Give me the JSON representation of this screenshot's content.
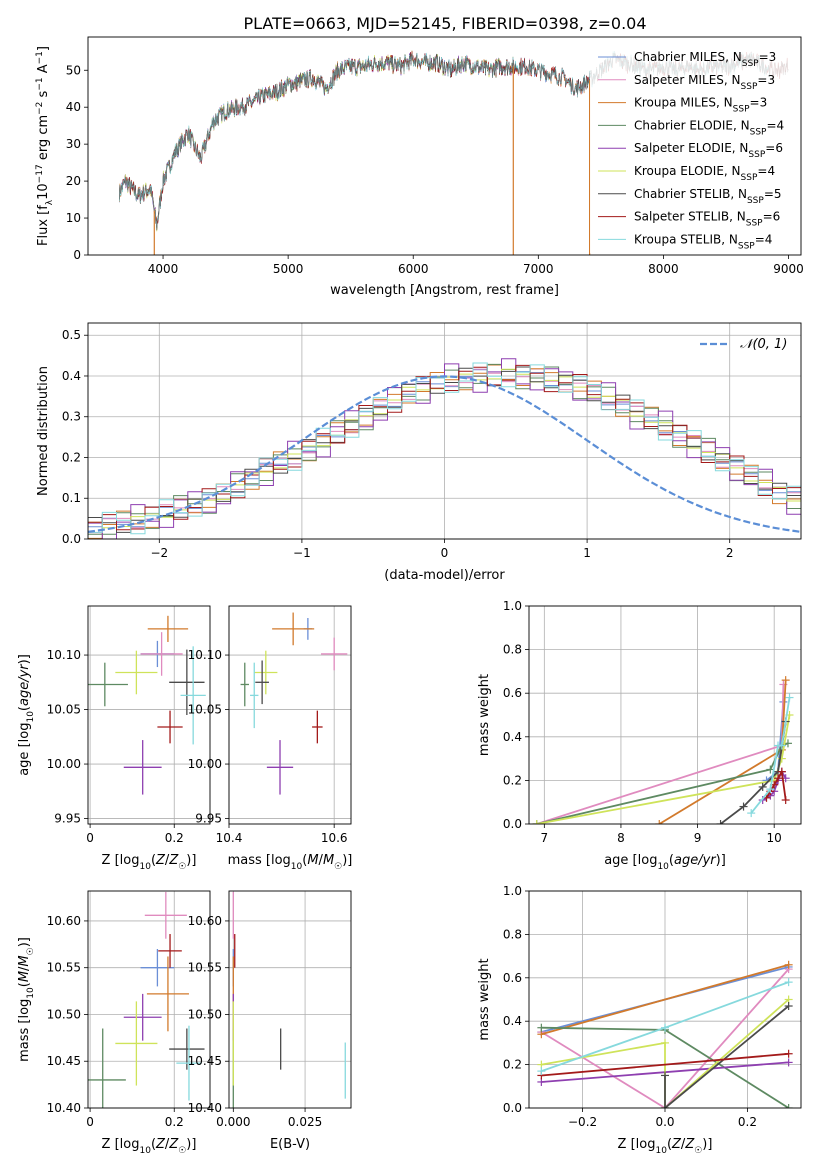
{
  "figure_title": "PLATE=0663, MJD=52145, FIBERID=0398, z=0.04",
  "colors": {
    "Chabrier MILES": "#6b8fd6",
    "Salpeter MILES": "#e08bbf",
    "Kroupa MILES": "#d27a2c",
    "Chabrier ELODIE": "#5e8a62",
    "Salpeter ELODIE": "#8e3fb0",
    "Kroupa ELODIE": "#cfe35a",
    "Chabrier STELIB": "#4a4a4a",
    "Salpeter STELIB": "#a31a1a",
    "Kroupa STELIB": "#86d9dd",
    "gaussian": "#5b8ed6"
  },
  "chart_data": [
    {
      "id": "spectrum",
      "type": "line",
      "title": "PLATE=0663, MJD=52145, FIBERID=0398, z=0.04",
      "xlabel": "wavelength [Angstrom, rest frame]",
      "ylabel": "Flux [f_λ 10^-17 erg cm^-2 s^-1 A^-1]",
      "xlim": [
        3400,
        9100
      ],
      "ylim": [
        0,
        59
      ],
      "xticks": [
        4000,
        5000,
        6000,
        7000,
        8000,
        9000
      ],
      "yticks": [
        0,
        10,
        20,
        30,
        40,
        50
      ],
      "legend_position": "top-right",
      "legend": [
        {
          "name": "Chabrier MILES",
          "nssp": "3"
        },
        {
          "name": "Salpeter MILES",
          "nssp": "3"
        },
        {
          "name": "Kroupa MILES",
          "nssp": "3"
        },
        {
          "name": "Chabrier ELODIE",
          "nssp": "4"
        },
        {
          "name": "Salpeter ELODIE",
          "nssp": "6"
        },
        {
          "name": "Kroupa ELODIE",
          "nssp": "4"
        },
        {
          "name": "Chabrier STELIB",
          "nssp": "5"
        },
        {
          "name": "Salpeter STELIB",
          "nssp": "6"
        },
        {
          "name": "Kroupa STELIB",
          "nssp": "4"
        }
      ],
      "envelope_x": [
        3650,
        3700,
        3800,
        3900,
        3950,
        4000,
        4100,
        4200,
        4300,
        4400,
        4500,
        4600,
        4700,
        4800,
        4900,
        5000,
        5100,
        5200,
        5300,
        5400,
        5500,
        5600,
        5700,
        5800,
        5900,
        6000,
        6100,
        6200,
        6300,
        6400,
        6500,
        6600,
        6700,
        6800,
        6900,
        7000,
        7100,
        7200,
        7300,
        7400,
        7500,
        7600,
        7700,
        7800,
        7900,
        8000,
        8100,
        8200,
        8300,
        8400,
        8500,
        8600,
        8700,
        8800,
        8900,
        9000
      ],
      "envelope_y": [
        17,
        20,
        16,
        18,
        8,
        20,
        28,
        33,
        26,
        36,
        39,
        40,
        41,
        43,
        44,
        46,
        47,
        48,
        45,
        50,
        51,
        51,
        52,
        52,
        51,
        53,
        52,
        52,
        50,
        52,
        51,
        50,
        51,
        51,
        51,
        50,
        49,
        48,
        45,
        47,
        50,
        53,
        52,
        51,
        50,
        51,
        50,
        51,
        50,
        51,
        51,
        52,
        53,
        51,
        50,
        51
      ],
      "dips": [
        {
          "x": 3930,
          "color_key": "Kroupa MILES"
        },
        {
          "x": 6800,
          "color_key": "Kroupa MILES"
        },
        {
          "x": 7410,
          "color_key": "Kroupa MILES"
        }
      ]
    },
    {
      "id": "residual_histogram",
      "type": "bar",
      "xlabel": "(data-model)/error",
      "ylabel": "Normed distribution",
      "xlim": [
        -2.5,
        2.5
      ],
      "ylim": [
        0,
        0.53
      ],
      "xticks": [
        -2,
        -1,
        0,
        1,
        2
      ],
      "yticks": [
        0.0,
        0.1,
        0.2,
        0.3,
        0.4,
        0.5
      ],
      "legend_label": "𝒩(0, 1)",
      "legend_position": "top-right",
      "bin_width": 0.1,
      "bin_start": -2.5,
      "histogram": [
        0.03,
        0.035,
        0.04,
        0.045,
        0.055,
        0.065,
        0.075,
        0.085,
        0.095,
        0.11,
        0.13,
        0.15,
        0.17,
        0.185,
        0.2,
        0.22,
        0.24,
        0.26,
        0.28,
        0.3,
        0.32,
        0.34,
        0.36,
        0.37,
        0.38,
        0.39,
        0.395,
        0.4,
        0.4,
        0.405,
        0.4,
        0.398,
        0.39,
        0.385,
        0.375,
        0.36,
        0.345,
        0.33,
        0.31,
        0.295,
        0.275,
        0.255,
        0.235,
        0.215,
        0.195,
        0.175,
        0.155,
        0.135,
        0.115,
        0.1
      ],
      "series_offsets": [
        0.01,
        -0.012,
        0.018,
        -0.02,
        0.025,
        -0.008,
        0.015,
        -0.018,
        0.02
      ]
    },
    {
      "id": "age_vs_Z",
      "type": "scatter",
      "xlabel": "Z [log10(Z/Z☉)]",
      "ylabel": "age [log10(age/yr)]",
      "xlim": [
        -0.005,
        0.285
      ],
      "ylim": [
        9.945,
        10.145
      ],
      "xticks": [
        0.0,
        0.2
      ],
      "yticks": [
        9.95,
        10.0,
        10.05,
        10.1
      ],
      "ytick_labels": [
        "9.95",
        "10.00",
        "10.05",
        "10.10"
      ],
      "points": [
        {
          "series": "Chabrier MILES",
          "x": 0.16,
          "y": 10.101,
          "xerr": 0.04,
          "yerr": 0.012
        },
        {
          "series": "Salpeter MILES",
          "x": 0.17,
          "y": 10.101,
          "xerr": 0.05,
          "yerr": 0.02
        },
        {
          "series": "Kroupa MILES",
          "x": 0.185,
          "y": 10.124,
          "xerr": 0.048,
          "yerr": 0.012
        },
        {
          "series": "Chabrier ELODIE",
          "x": 0.035,
          "y": 10.073,
          "xerr": 0.055,
          "yerr": 0.02
        },
        {
          "series": "Salpeter ELODIE",
          "x": 0.125,
          "y": 9.997,
          "xerr": 0.045,
          "yerr": 0.025
        },
        {
          "series": "Kroupa ELODIE",
          "x": 0.11,
          "y": 10.084,
          "xerr": 0.05,
          "yerr": 0.02
        },
        {
          "series": "Chabrier STELIB",
          "x": 0.23,
          "y": 10.075,
          "xerr": 0.042,
          "yerr": 0.03
        },
        {
          "series": "Salpeter STELIB",
          "x": 0.19,
          "y": 10.034,
          "xerr": 0.03,
          "yerr": 0.015
        },
        {
          "series": "Kroupa STELIB",
          "x": 0.245,
          "y": 10.063,
          "xerr": 0.03,
          "yerr": 0.045
        }
      ]
    },
    {
      "id": "age_vs_mass",
      "type": "scatter",
      "xlabel": "mass [log10(M/M☉)]",
      "xlim": [
        10.4,
        10.632
      ],
      "ylim": [
        9.945,
        10.145
      ],
      "xticks": [
        10.4,
        10.6
      ],
      "xtick_labels": [
        "10.4",
        "10.6"
      ],
      "yticks": [
        9.95,
        10.0,
        10.05,
        10.1
      ],
      "ytick_labels": [
        "9.95",
        "10.00",
        "10.05",
        "10.10"
      ],
      "points": [
        {
          "series": "Chabrier MILES",
          "x": 10.55,
          "y": 10.124,
          "xerr": 0.008,
          "yerr": 0.01
        },
        {
          "series": "Salpeter MILES",
          "x": 10.6,
          "y": 10.101,
          "xerr": 0.025,
          "yerr": 0.015
        },
        {
          "series": "Kroupa MILES",
          "x": 10.522,
          "y": 10.124,
          "xerr": 0.04,
          "yerr": 0.015
        },
        {
          "series": "Chabrier ELODIE",
          "x": 10.43,
          "y": 10.073,
          "xerr": 0.008,
          "yerr": 0.02
        },
        {
          "series": "Salpeter ELODIE",
          "x": 10.497,
          "y": 9.997,
          "xerr": 0.025,
          "yerr": 0.025
        },
        {
          "series": "Kroupa ELODIE",
          "x": 10.47,
          "y": 10.084,
          "xerr": 0.022,
          "yerr": 0.02
        },
        {
          "series": "Chabrier STELIB",
          "x": 10.463,
          "y": 10.075,
          "xerr": 0.013,
          "yerr": 0.02
        },
        {
          "series": "Salpeter STELIB",
          "x": 10.568,
          "y": 10.034,
          "xerr": 0.01,
          "yerr": 0.015
        },
        {
          "series": "Kroupa STELIB",
          "x": 10.448,
          "y": 10.063,
          "xerr": 0.008,
          "yerr": 0.03
        }
      ]
    },
    {
      "id": "massweight_vs_age",
      "type": "line",
      "xlabel": "age [log10(age/yr)]",
      "ylabel": "mass weight",
      "xlim": [
        6.8,
        10.35
      ],
      "ylim": [
        0,
        1.0
      ],
      "xticks": [
        7,
        8,
        9,
        10
      ],
      "yticks": [
        0.0,
        0.2,
        0.4,
        0.6,
        0.8,
        1.0
      ],
      "series": [
        {
          "name": "Chabrier MILES",
          "x": [
            9.9,
            10.05,
            10.12
          ],
          "y": [
            0.2,
            0.24,
            0.56
          ]
        },
        {
          "name": "Salpeter MILES",
          "x": [
            6.9,
            10.1,
            10.12
          ],
          "y": [
            0.0,
            0.36,
            0.64
          ]
        },
        {
          "name": "Kroupa MILES",
          "x": [
            8.5,
            10.1,
            10.15
          ],
          "y": [
            0.0,
            0.34,
            0.66
          ]
        },
        {
          "name": "Chabrier ELODIE",
          "x": [
            6.9,
            9.95,
            10.1,
            10.18
          ],
          "y": [
            0.0,
            0.25,
            0.36,
            0.37
          ]
        },
        {
          "name": "Salpeter ELODIE",
          "x": [
            9.85,
            9.95,
            10.0,
            10.05,
            10.1,
            10.15
          ],
          "y": [
            0.11,
            0.13,
            0.15,
            0.2,
            0.24,
            0.21
          ]
        },
        {
          "name": "Kroupa ELODIE",
          "x": [
            6.9,
            10.0,
            10.1,
            10.2
          ],
          "y": [
            0.0,
            0.2,
            0.3,
            0.5
          ]
        },
        {
          "name": "Chabrier STELIB",
          "x": [
            9.3,
            9.6,
            9.85,
            10.05,
            10.15
          ],
          "y": [
            0.0,
            0.08,
            0.17,
            0.24,
            0.47
          ]
        },
        {
          "name": "Salpeter STELIB",
          "x": [
            9.9,
            9.95,
            10.0,
            10.05,
            10.1,
            10.15
          ],
          "y": [
            0.12,
            0.15,
            0.18,
            0.21,
            0.24,
            0.11
          ]
        },
        {
          "name": "Kroupa STELIB",
          "x": [
            9.7,
            9.95,
            10.05,
            10.1,
            10.2
          ],
          "y": [
            0.05,
            0.16,
            0.36,
            0.36,
            0.58
          ]
        }
      ]
    },
    {
      "id": "mass_vs_Z",
      "type": "scatter",
      "xlabel": "Z [log10(Z/Z☉)]",
      "ylabel": "mass [log10(M/M☉)]",
      "xlim": [
        -0.005,
        0.285
      ],
      "ylim": [
        10.4,
        10.632
      ],
      "xticks": [
        0.0,
        0.2
      ],
      "yticks": [
        10.4,
        10.45,
        10.5,
        10.55,
        10.6
      ],
      "ytick_labels": [
        "10.40",
        "10.45",
        "10.50",
        "10.55",
        "10.60"
      ],
      "points": [
        {
          "series": "Chabrier MILES",
          "x": 0.16,
          "y": 10.55,
          "xerr": 0.04,
          "yerr": 0.02
        },
        {
          "series": "Salpeter MILES",
          "x": 0.18,
          "y": 10.606,
          "xerr": 0.05,
          "yerr": 0.025
        },
        {
          "series": "Kroupa MILES",
          "x": 0.185,
          "y": 10.522,
          "xerr": 0.05,
          "yerr": 0.04
        },
        {
          "series": "Chabrier ELODIE",
          "x": 0.03,
          "y": 10.43,
          "xerr": 0.055,
          "yerr": 0.055
        },
        {
          "series": "Salpeter ELODIE",
          "x": 0.125,
          "y": 10.497,
          "xerr": 0.045,
          "yerr": 0.025
        },
        {
          "series": "Kroupa ELODIE",
          "x": 0.11,
          "y": 10.469,
          "xerr": 0.05,
          "yerr": 0.045
        },
        {
          "series": "Chabrier STELIB",
          "x": 0.23,
          "y": 10.463,
          "xerr": 0.042,
          "yerr": 0.022
        },
        {
          "series": "Salpeter STELIB",
          "x": 0.19,
          "y": 10.568,
          "xerr": 0.028,
          "yerr": 0.018
        },
        {
          "series": "Kroupa STELIB",
          "x": 0.235,
          "y": 10.448,
          "xerr": 0.03,
          "yerr": 0.04
        }
      ]
    },
    {
      "id": "mass_vs_EBV",
      "type": "scatter",
      "xlabel": "E(B-V)",
      "xlim": [
        -0.0015,
        0.041
      ],
      "ylim": [
        10.4,
        10.632
      ],
      "xticks": [
        0.0,
        0.025
      ],
      "xtick_labels": [
        "0.000",
        "0.025"
      ],
      "yticks": [
        10.4,
        10.45,
        10.5,
        10.55,
        10.6
      ],
      "ytick_labels": [
        "10.40",
        "10.45",
        "10.50",
        "10.55",
        "10.60"
      ],
      "points": [
        {
          "series": "Chabrier MILES",
          "x": 0.0,
          "y": 10.55,
          "xerr": 0.0,
          "yerr": 0.02
        },
        {
          "series": "Salpeter MILES",
          "x": 0.0,
          "y": 10.606,
          "xerr": 0.0,
          "yerr": 0.025
        },
        {
          "series": "Kroupa MILES",
          "x": 0.0,
          "y": 10.522,
          "xerr": 0.0,
          "yerr": 0.04
        },
        {
          "series": "Chabrier ELODIE",
          "x": 0.0,
          "y": 10.43,
          "xerr": 0.0,
          "yerr": 0.055
        },
        {
          "series": "Salpeter ELODIE",
          "x": 0.0,
          "y": 10.497,
          "xerr": 0.0,
          "yerr": 0.025
        },
        {
          "series": "Kroupa ELODIE",
          "x": 0.0,
          "y": 10.469,
          "xerr": 0.0,
          "yerr": 0.045
        },
        {
          "series": "Chabrier STELIB",
          "x": 0.0165,
          "y": 10.463,
          "xerr": 0.0,
          "yerr": 0.022
        },
        {
          "series": "Salpeter STELIB",
          "x": 0.0005,
          "y": 10.568,
          "xerr": 0.0,
          "yerr": 0.018
        },
        {
          "series": "Kroupa STELIB",
          "x": 0.039,
          "y": 10.44,
          "xerr": 0.0,
          "yerr": 0.03
        }
      ]
    },
    {
      "id": "massweight_vs_Z",
      "type": "line",
      "xlabel": "Z [log10(Z/Z☉)]",
      "ylabel": "mass weight",
      "xlim": [
        -0.33,
        0.33
      ],
      "ylim": [
        0,
        1.0
      ],
      "xticks": [
        -0.2,
        0.0,
        0.2
      ],
      "xtick_labels": [
        "−0.2",
        "0.0",
        "0.2"
      ],
      "yticks": [
        0.0,
        0.2,
        0.4,
        0.6,
        0.8,
        1.0
      ],
      "series": [
        {
          "name": "Chabrier MILES",
          "x": [
            -0.3,
            0.3
          ],
          "y": [
            0.35,
            0.65
          ]
        },
        {
          "name": "Salpeter MILES",
          "x": [
            -0.3,
            0.0,
            0.3
          ],
          "y": [
            0.35,
            0.0,
            0.64
          ]
        },
        {
          "name": "Kroupa MILES",
          "x": [
            -0.3,
            0.3
          ],
          "y": [
            0.34,
            0.66
          ]
        },
        {
          "name": "Chabrier ELODIE",
          "x": [
            -0.3,
            0.0,
            0.3
          ],
          "y": [
            0.37,
            0.36,
            0.0
          ]
        },
        {
          "name": "Salpeter ELODIE",
          "x": [
            -0.3,
            0.3
          ],
          "y": [
            0.12,
            0.21
          ]
        },
        {
          "name": "Kroupa ELODIE",
          "x": [
            -0.3,
            0.0,
            0.0,
            0.3
          ],
          "y": [
            0.2,
            0.3,
            0.0,
            0.5
          ]
        },
        {
          "name": "Chabrier STELIB",
          "x": [
            0.0,
            0.0,
            0.3
          ],
          "y": [
            0.15,
            0.0,
            0.47
          ]
        },
        {
          "name": "Salpeter STELIB",
          "x": [
            -0.3,
            0.3
          ],
          "y": [
            0.15,
            0.25
          ]
        },
        {
          "name": "Kroupa STELIB",
          "x": [
            -0.3,
            0.0,
            0.3
          ],
          "y": [
            0.17,
            0.37,
            0.58
          ]
        }
      ]
    }
  ]
}
